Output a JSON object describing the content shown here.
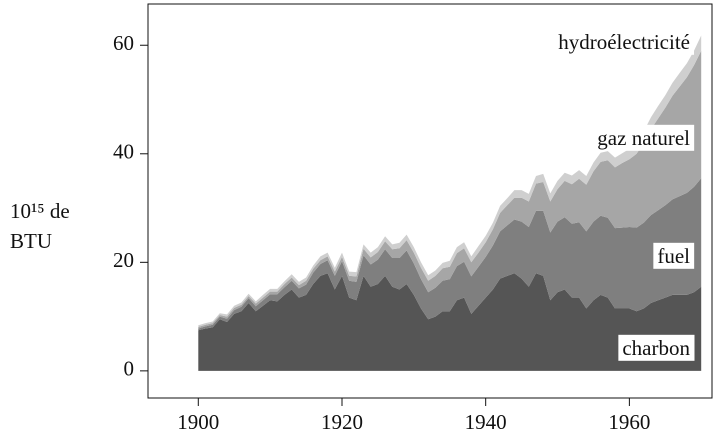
{
  "chart_data": {
    "type": "stacked_area",
    "y_label": [
      "10¹⁵ de",
      "BTU"
    ],
    "x": [
      1900,
      1901,
      1902,
      1903,
      1904,
      1905,
      1906,
      1907,
      1908,
      1909,
      1910,
      1911,
      1912,
      1913,
      1914,
      1915,
      1916,
      1917,
      1918,
      1919,
      1920,
      1921,
      1922,
      1923,
      1924,
      1925,
      1926,
      1927,
      1928,
      1929,
      1930,
      1931,
      1932,
      1933,
      1934,
      1935,
      1936,
      1937,
      1938,
      1939,
      1940,
      1941,
      1942,
      1943,
      1944,
      1945,
      1946,
      1947,
      1948,
      1949,
      1950,
      1951,
      1952,
      1953,
      1954,
      1955,
      1956,
      1957,
      1958,
      1959,
      1960,
      1961,
      1962,
      1963,
      1964,
      1965,
      1966,
      1967,
      1968,
      1969,
      1970
    ],
    "series": [
      {
        "name": "charbon",
        "color": "#555555",
        "values": [
          7.5,
          7.8,
          8,
          9.5,
          9,
          10.5,
          11,
          12.5,
          11,
          12,
          13,
          12.8,
          14,
          15,
          13.5,
          14,
          16,
          17.5,
          18,
          15,
          17.5,
          13.5,
          13,
          17.5,
          15.5,
          16,
          17.5,
          15.5,
          15,
          16,
          14,
          11.5,
          9.5,
          10,
          11,
          11,
          13,
          13.5,
          10.5,
          12,
          13.5,
          15,
          17,
          17.5,
          18,
          17,
          15.5,
          18,
          17.5,
          13,
          14.5,
          15,
          13.5,
          13.5,
          11.5,
          13,
          14,
          13.5,
          11.5,
          11.5,
          11.5,
          11,
          11.5,
          12.5,
          13,
          13.5,
          14,
          14,
          14,
          14.5,
          15.5
        ]
      },
      {
        "name": "fuel",
        "color": "#7f7f7f",
        "values": [
          0.3,
          0.4,
          0.5,
          0.5,
          0.6,
          0.7,
          0.8,
          0.9,
          0.9,
          1.0,
          1.1,
          1.3,
          1.4,
          1.6,
          1.7,
          1.9,
          2.1,
          2.2,
          2.4,
          2.5,
          2.7,
          3.1,
          3.4,
          3.8,
          4.1,
          4.5,
          4.9,
          5.3,
          5.8,
          6.2,
          5.8,
          5.4,
          5.0,
          5.3,
          5.6,
          5.9,
          6.3,
          6.6,
          6.9,
          7.2,
          7.5,
          8.1,
          8.7,
          9.3,
          9.9,
          10.5,
          11,
          11.5,
          12,
          12.5,
          13,
          13.3,
          13.6,
          13.9,
          14.2,
          14.5,
          14.6,
          14.7,
          14.8,
          14.9,
          15,
          15.4,
          15.8,
          16.2,
          16.6,
          17,
          17.6,
          18.2,
          18.8,
          19.4,
          20
        ]
      },
      {
        "name": "gaz naturel",
        "color": "#a6a6a6",
        "values": [
          0.3,
          0.3,
          0.3,
          0.3,
          0.4,
          0.4,
          0.4,
          0.4,
          0.5,
          0.5,
          0.5,
          0.5,
          0.6,
          0.6,
          0.6,
          0.7,
          0.7,
          0.7,
          0.7,
          0.8,
          0.8,
          0.9,
          1.0,
          1.2,
          1.3,
          1.4,
          1.5,
          1.6,
          1.8,
          1.9,
          2.0,
          2.1,
          2.1,
          2.2,
          2.3,
          2.3,
          2.4,
          2.5,
          2.6,
          2.6,
          2.7,
          3.0,
          3.4,
          3.7,
          4.0,
          4.4,
          4.7,
          5.0,
          5.3,
          5.7,
          6.0,
          6.7,
          7.3,
          8.0,
          8.6,
          9.3,
          9.9,
          10.6,
          11.2,
          11.9,
          12.5,
          13.6,
          14.7,
          15.8,
          16.9,
          18,
          19.1,
          20.2,
          21.3,
          22.4,
          23.5
        ]
      },
      {
        "name": "hydroélectricité",
        "color": "#cfcfcf",
        "values": [
          0.3,
          0.3,
          0.3,
          0.3,
          0.4,
          0.4,
          0.4,
          0.4,
          0.4,
          0.5,
          0.5,
          0.5,
          0.5,
          0.6,
          0.6,
          0.6,
          0.6,
          0.7,
          0.7,
          0.7,
          0.8,
          0.8,
          0.8,
          0.8,
          0.9,
          0.9,
          0.9,
          0.9,
          1.0,
          1.0,
          1.0,
          1.0,
          1.0,
          1.0,
          1.0,
          1.1,
          1.1,
          1.1,
          1.1,
          1.2,
          1.2,
          1.2,
          1.3,
          1.3,
          1.4,
          1.4,
          1.4,
          1.4,
          1.5,
          1.5,
          1.5,
          1.5,
          1.6,
          1.6,
          1.6,
          1.6,
          1.7,
          1.7,
          1.8,
          1.8,
          1.9,
          2.0,
          2.1,
          2.2,
          2.3,
          2.3,
          2.4,
          2.5,
          2.6,
          2.7,
          2.8
        ]
      }
    ],
    "xlim": [
      1893,
      1971.5
    ],
    "ylim": [
      -5,
      67.6
    ],
    "xticks": [
      1900,
      1920,
      1940,
      1960
    ],
    "yticks": [
      0,
      20,
      40,
      60
    ],
    "grid": false
  }
}
